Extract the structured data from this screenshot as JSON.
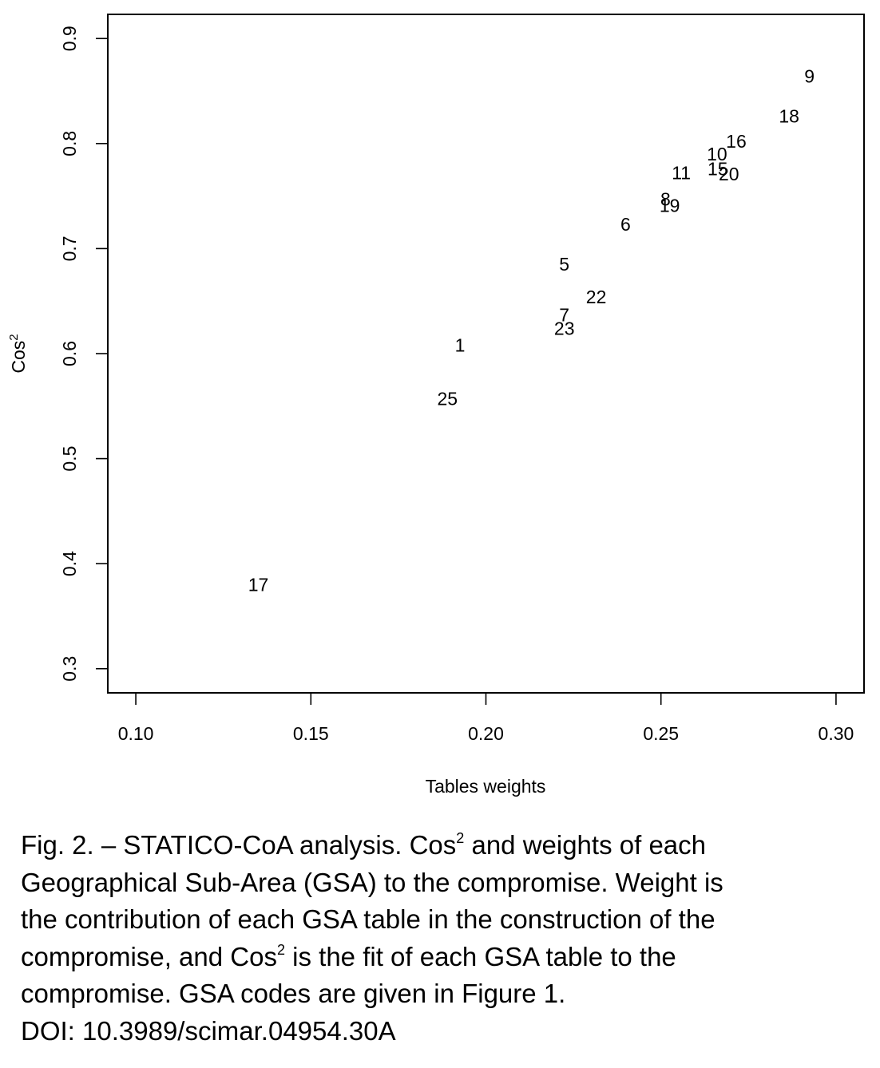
{
  "chart_data": {
    "type": "scatter",
    "marker": "text-labels",
    "xlabel": "Tables weights",
    "ylabel": "Cos",
    "ylabel_sup": "2",
    "xlim": [
      0.092,
      0.308
    ],
    "ylim": [
      0.277,
      0.923
    ],
    "xticks": [
      0.1,
      0.15,
      0.2,
      0.25,
      0.3
    ],
    "xtick_labels": [
      "0.10",
      "0.15",
      "0.20",
      "0.25",
      "0.30"
    ],
    "yticks": [
      0.3,
      0.4,
      0.5,
      0.6,
      0.7,
      0.8,
      0.9
    ],
    "ytick_labels": [
      "0.3",
      "0.4",
      "0.5",
      "0.6",
      "0.7",
      "0.8",
      "0.9"
    ],
    "grid": false,
    "points": [
      {
        "label": "9",
        "x": 0.2924,
        "y": 0.864
      },
      {
        "label": "18",
        "x": 0.2866,
        "y": 0.826
      },
      {
        "label": "16",
        "x": 0.2715,
        "y": 0.802
      },
      {
        "label": "10",
        "x": 0.266,
        "y": 0.79
      },
      {
        "label": "15",
        "x": 0.2662,
        "y": 0.776
      },
      {
        "label": "20",
        "x": 0.2694,
        "y": 0.771
      },
      {
        "label": "11",
        "x": 0.2558,
        "y": 0.772
      },
      {
        "label": "8",
        "x": 0.2513,
        "y": 0.747
      },
      {
        "label": "19",
        "x": 0.2525,
        "y": 0.741
      },
      {
        "label": "6",
        "x": 0.2399,
        "y": 0.723
      },
      {
        "label": "5",
        "x": 0.2224,
        "y": 0.685
      },
      {
        "label": "22",
        "x": 0.2315,
        "y": 0.654
      },
      {
        "label": "7",
        "x": 0.2224,
        "y": 0.637
      },
      {
        "label": "23",
        "x": 0.2224,
        "y": 0.624
      },
      {
        "label": "1",
        "x": 0.1926,
        "y": 0.608
      },
      {
        "label": "25",
        "x": 0.189,
        "y": 0.557
      },
      {
        "label": "17",
        "x": 0.135,
        "y": 0.38
      }
    ]
  },
  "caption": {
    "line1_a": "Fig. 2. – STATICO-CoA analysis. Cos",
    "line1_sup": "2",
    "line1_b": " and weights of each",
    "line2": "Geographical Sub-Area (GSA) to the compromise. Weight is",
    "line3": "the contribution of each GSA table in the construction of the",
    "line4_a": "compromise, and Cos",
    "line4_sup": "2",
    "line4_b": " is the fit of each GSA table to the",
    "line5": "compromise. GSA codes are given in Figure 1.",
    "doi": "DOI: 10.3989/scimar.04954.30A"
  }
}
